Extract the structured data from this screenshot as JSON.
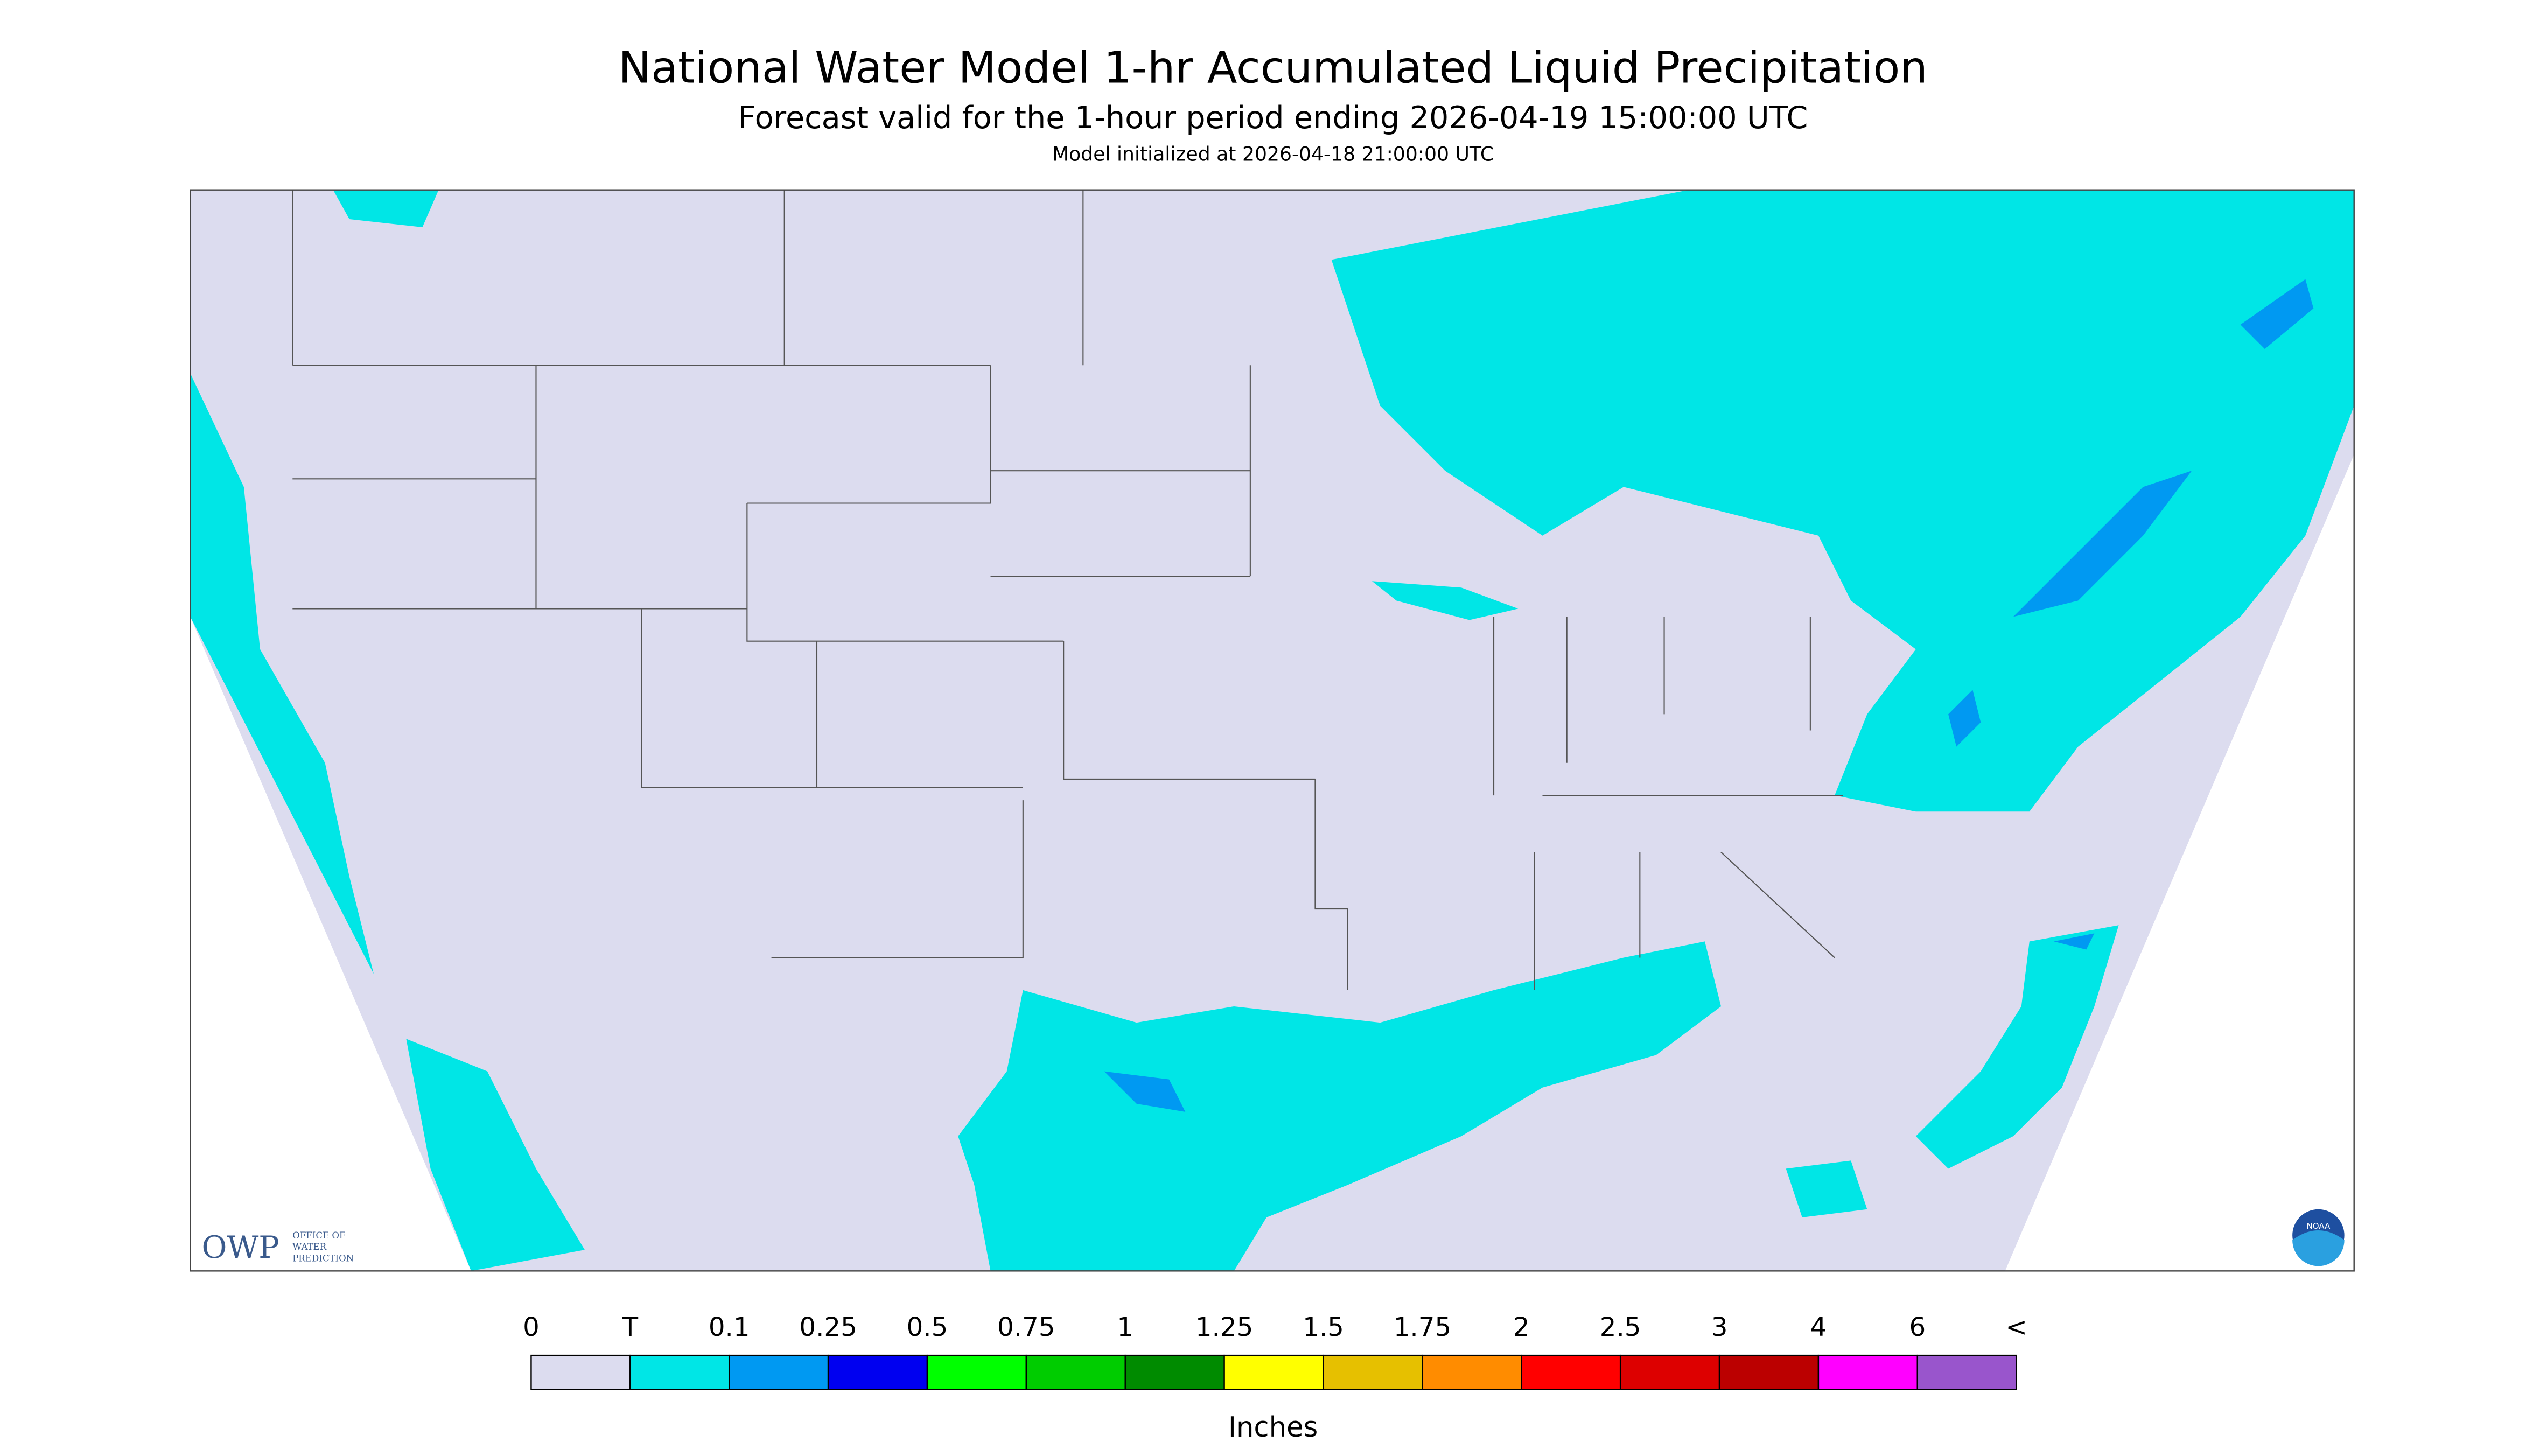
{
  "header": {
    "title": "National Water Model 1-hr Accumulated Liquid Precipitation",
    "subtitle": "Forecast valid for the 1-hour period ending 2026-04-19 15:00:00 UTC",
    "init": "Model initialized at 2026-04-18 21:00:00 UTC"
  },
  "logos": {
    "owp": "OWP",
    "owp_text": [
      "OFFICE OF",
      "WATER",
      "PREDICTION"
    ],
    "noaa": "NOAA"
  },
  "legend": {
    "labels": [
      "0",
      "T",
      "0.1",
      "0.25",
      "0.5",
      "0.75",
      "1",
      "1.25",
      "1.5",
      "1.75",
      "2",
      "2.5",
      "3",
      "4",
      "6",
      "<"
    ],
    "colors": [
      "#dcdcef",
      "#00e6e6",
      "#0099f2",
      "#0000f0",
      "#00ff00",
      "#00cc00",
      "#008b00",
      "#ffff00",
      "#e6c000",
      "#ff8c00",
      "#ff0000",
      "#dd0000",
      "#bb0000",
      "#ff00ff",
      "#9955cc"
    ],
    "unit": "Inches"
  }
}
